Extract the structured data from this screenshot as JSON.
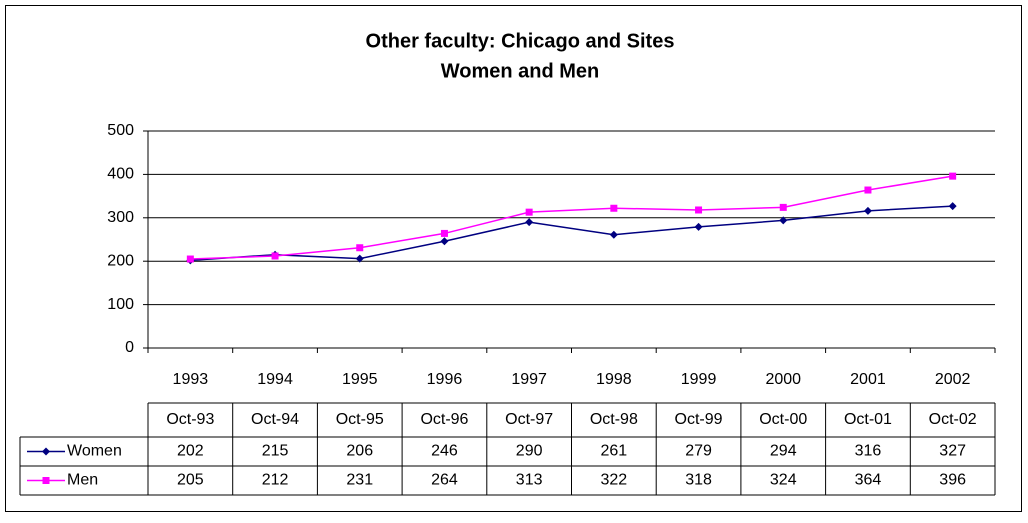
{
  "chart_data": {
    "type": "line",
    "title": "Other faculty: Chicago and Sites",
    "subtitle": "Women and Men",
    "categories": [
      "1993",
      "1994",
      "1995",
      "1996",
      "1997",
      "1998",
      "1999",
      "2000",
      "2001",
      "2002"
    ],
    "table_header": [
      "Oct-93",
      "Oct-94",
      "Oct-95",
      "Oct-96",
      "Oct-97",
      "Oct-98",
      "Oct-99",
      "Oct-00",
      "Oct-01",
      "Oct-02"
    ],
    "series": [
      {
        "name": "Women",
        "color": "#000080",
        "marker": "diamond",
        "values": [
          202,
          215,
          206,
          246,
          290,
          261,
          279,
          294,
          316,
          327
        ]
      },
      {
        "name": "Men",
        "color": "#ff00ff",
        "marker": "square",
        "values": [
          205,
          212,
          231,
          264,
          313,
          322,
          318,
          324,
          364,
          396
        ]
      }
    ],
    "ylim": [
      0,
      500
    ],
    "yticks": [
      0,
      100,
      200,
      300,
      400,
      500
    ],
    "grid": true
  }
}
